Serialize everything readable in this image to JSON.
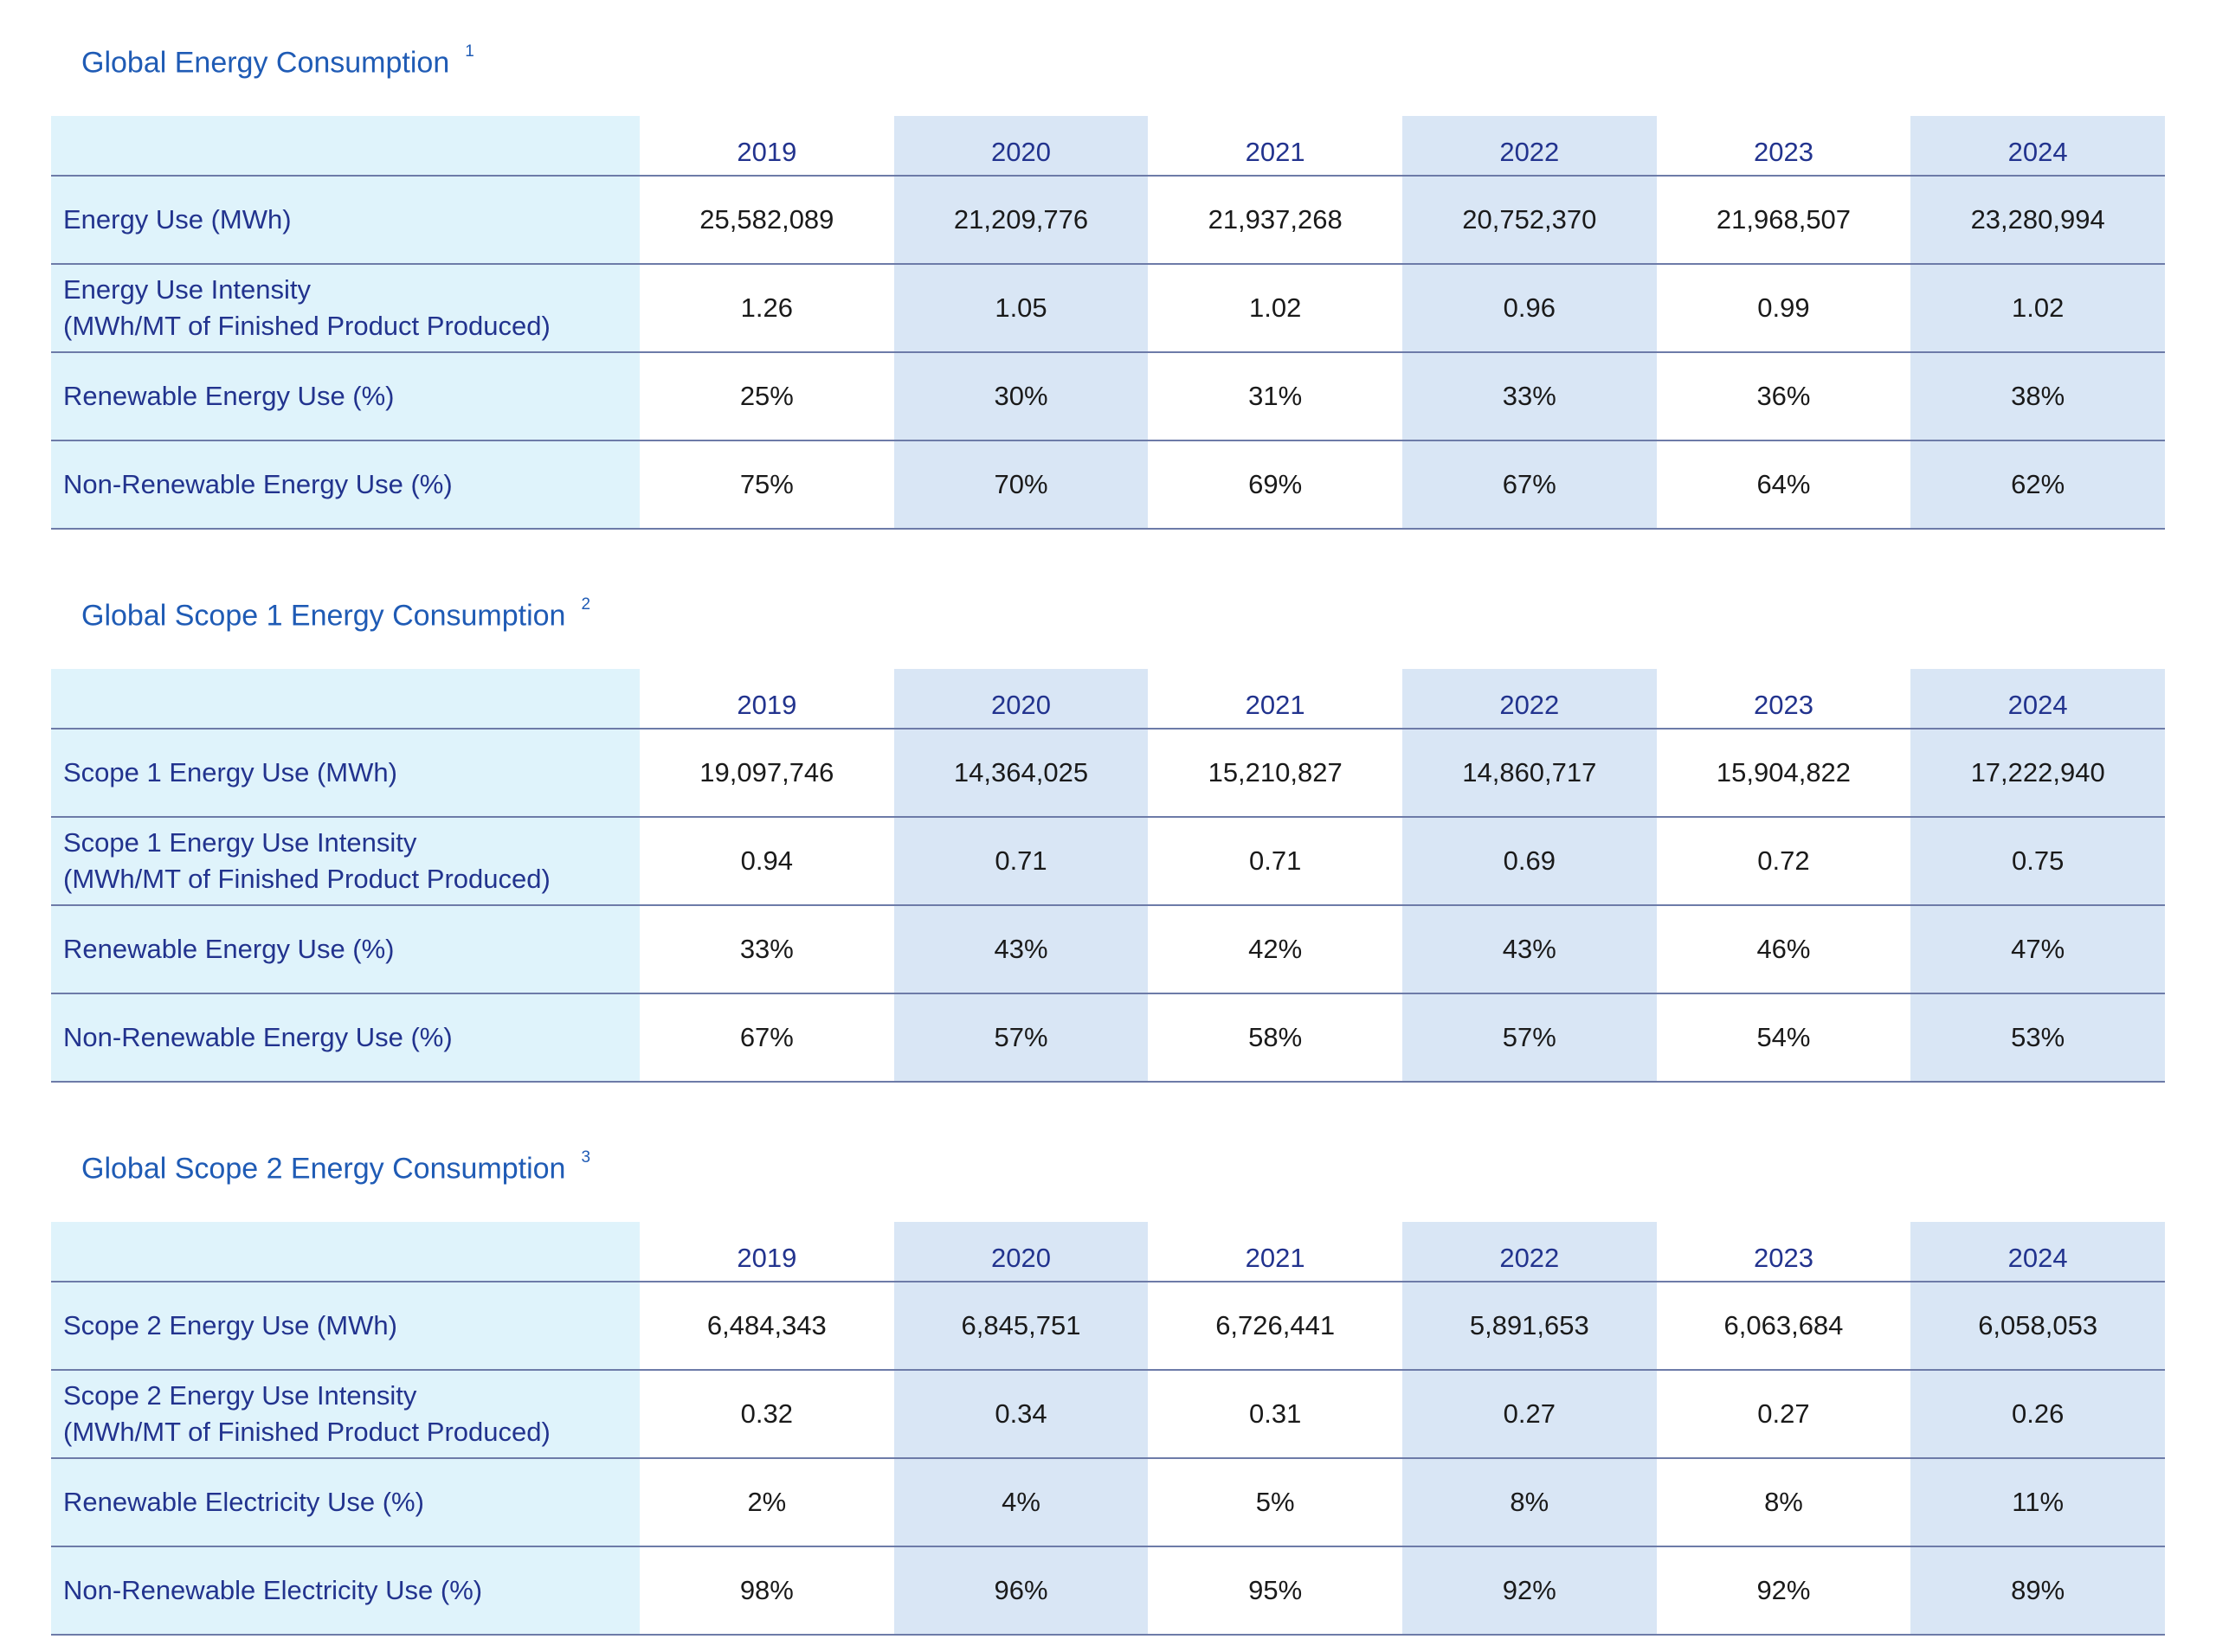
{
  "tables": [
    {
      "title": "Global Energy Consumption",
      "footnote": "1",
      "years": [
        "2019",
        "2020",
        "2021",
        "2022",
        "2023",
        "2024"
      ],
      "rows": [
        {
          "label": "Energy Use (MWh)",
          "sublabel": "",
          "values": [
            "25,582,089",
            "21,209,776",
            "21,937,268",
            "20,752,370",
            "21,968,507",
            "23,280,994"
          ]
        },
        {
          "label": "Energy Use Intensity",
          "sublabel": "(MWh/MT of Finished Product Produced)",
          "values": [
            "1.26",
            "1.05",
            "1.02",
            "0.96",
            "0.99",
            "1.02"
          ]
        },
        {
          "label": "Renewable Energy Use (%)",
          "sublabel": "",
          "values": [
            "25%",
            "30%",
            "31%",
            "33%",
            "36%",
            "38%"
          ]
        },
        {
          "label": "Non-Renewable Energy Use (%)",
          "sublabel": "",
          "values": [
            "75%",
            "70%",
            "69%",
            "67%",
            "64%",
            "62%"
          ]
        }
      ]
    },
    {
      "title": "Global Scope 1 Energy Consumption",
      "footnote": "2",
      "years": [
        "2019",
        "2020",
        "2021",
        "2022",
        "2023",
        "2024"
      ],
      "rows": [
        {
          "label": "Scope 1 Energy Use (MWh)",
          "sublabel": "",
          "values": [
            "19,097,746",
            "14,364,025",
            "15,210,827",
            "14,860,717",
            "15,904,822",
            "17,222,940"
          ]
        },
        {
          "label": "Scope 1 Energy Use Intensity",
          "sublabel": "(MWh/MT of Finished Product Produced)",
          "values": [
            "0.94",
            "0.71",
            "0.71",
            "0.69",
            "0.72",
            "0.75"
          ]
        },
        {
          "label": "Renewable Energy Use (%)",
          "sublabel": "",
          "values": [
            "33%",
            "43%",
            "42%",
            "43%",
            "46%",
            "47%"
          ]
        },
        {
          "label": "Non-Renewable Energy Use (%)",
          "sublabel": "",
          "values": [
            "67%",
            "57%",
            "58%",
            "57%",
            "54%",
            "53%"
          ]
        }
      ]
    },
    {
      "title": "Global Scope 2 Energy Consumption",
      "footnote": "3",
      "years": [
        "2019",
        "2020",
        "2021",
        "2022",
        "2023",
        "2024"
      ],
      "rows": [
        {
          "label": "Scope 2 Energy Use (MWh)",
          "sublabel": "",
          "values": [
            "6,484,343",
            "6,845,751",
            "6,726,441",
            "5,891,653",
            "6,063,684",
            "6,058,053"
          ]
        },
        {
          "label": "Scope 2 Energy Use Intensity",
          "sublabel": "(MWh/MT of Finished Product Produced)",
          "values": [
            "0.32",
            "0.34",
            "0.31",
            "0.27",
            "0.27",
            "0.26"
          ]
        },
        {
          "label": "Renewable Electricity Use (%)",
          "sublabel": "",
          "values": [
            "2%",
            "4%",
            "5%",
            "8%",
            "8%",
            "11%"
          ]
        },
        {
          "label": "Non-Renewable Electricity Use (%)",
          "sublabel": "",
          "values": [
            "98%",
            "96%",
            "95%",
            "92%",
            "92%",
            "89%"
          ]
        }
      ]
    }
  ],
  "colors": {
    "title": "#1f5bb5",
    "header_text": "#22338e",
    "label_col_bg": "#dff3fb",
    "alt_col_bg": "#d9e6f5",
    "rule": "#6d7ba8"
  }
}
